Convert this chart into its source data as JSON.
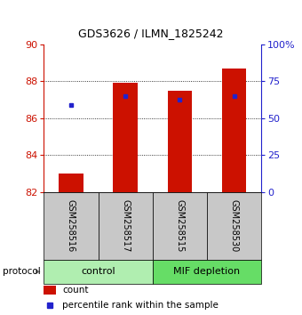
{
  "title": "GDS3626 / ILMN_1825242",
  "samples": [
    "GSM258516",
    "GSM258517",
    "GSM258515",
    "GSM258530"
  ],
  "bar_baseline": 82,
  "bar_tops": [
    83.0,
    87.9,
    87.5,
    88.7
  ],
  "percentile_values": [
    86.7,
    87.2,
    87.0,
    87.2
  ],
  "ylim_left": [
    82,
    90
  ],
  "ylim_right": [
    0,
    100
  ],
  "yticks_left": [
    82,
    84,
    86,
    88,
    90
  ],
  "yticks_right": [
    0,
    25,
    50,
    75,
    100
  ],
  "ytick_labels_right": [
    "0",
    "25",
    "50",
    "75",
    "100%"
  ],
  "bar_color": "#CC1100",
  "blue_color": "#2222CC",
  "bar_width": 0.45,
  "left_axis_color": "#CC1100",
  "right_axis_color": "#2222CC",
  "bg_sample_labels": "#C8C8C8",
  "bg_group_control": "#B0EEB0",
  "bg_group_mif": "#66DD66",
  "title_fontsize": 9,
  "tick_fontsize": 8,
  "sample_fontsize": 7,
  "group_fontsize": 8,
  "legend_fontsize": 7.5
}
